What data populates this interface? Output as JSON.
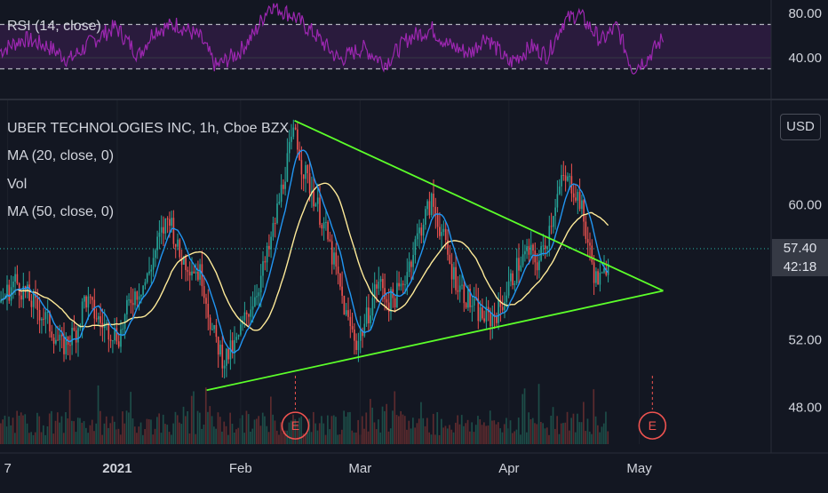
{
  "header": {
    "symbol_title": "UBER TECHNOLOGIES INC, 1h, Cboe BZX",
    "rsi_label": "RSI (14, close)",
    "indicators": [
      "MA (20, close, 0)",
      "Vol",
      "MA (50, close, 0)"
    ],
    "currency_button": "USD"
  },
  "last_price": {
    "value": "57.40",
    "countdown": "42:18",
    "numeric": 57.4
  },
  "colors": {
    "background": "#131722",
    "candle_up": "#26a69a",
    "candle_down": "#ef5350",
    "ma20": "#2196f3",
    "ma50": "#ffeb99",
    "rsi_line": "#9c27b0",
    "rsi_band": "#2a1b3d",
    "trendline": "#5cff2a",
    "earnings_marker": "#ef5350",
    "axis_text": "#d1d4dc",
    "grid": "#363a45"
  },
  "chart_data": [
    {
      "type": "line",
      "name": "RSI (14, close)",
      "ylim": [
        12,
        92
      ],
      "y_ticks": [
        "80.00",
        "40.00"
      ],
      "y_tick_values": [
        80,
        40
      ],
      "bands": [
        30,
        70
      ],
      "x": [
        0,
        0.03,
        0.06,
        0.09,
        0.12,
        0.15,
        0.18,
        0.2,
        0.23,
        0.26,
        0.28,
        0.31,
        0.33,
        0.35,
        0.38,
        0.41,
        0.44,
        0.47,
        0.5,
        0.53,
        0.56,
        0.58,
        0.61,
        0.63,
        0.66,
        0.69,
        0.71,
        0.73,
        0.75,
        0.78,
        0.8,
        0.82,
        0.84,
        0.86
      ],
      "values": [
        46,
        57,
        51,
        38,
        55,
        68,
        42,
        65,
        70,
        58,
        32,
        45,
        62,
        88,
        78,
        60,
        38,
        49,
        35,
        58,
        66,
        52,
        44,
        60,
        35,
        50,
        42,
        72,
        80,
        55,
        68,
        30,
        40,
        58
      ]
    },
    {
      "type": "candlestick",
      "name": "UBER TECHNOLOGIES INC, 1h, Cboe BZX",
      "ylim": [
        45.8,
        66.2
      ],
      "y_ticks": [
        "60.00",
        "52.00",
        "48.00"
      ],
      "y_tick_values": [
        60,
        52,
        48
      ],
      "x_ticks": [
        "7",
        "2021",
        "Feb",
        "Mar",
        "Apr",
        "May"
      ],
      "x_tick_positions": [
        0.01,
        0.152,
        0.312,
        0.467,
        0.66,
        0.829
      ],
      "price_path": [
        [
          0,
          54.2
        ],
        [
          0.02,
          55.5
        ],
        [
          0.04,
          54.3
        ],
        [
          0.06,
          53.2
        ],
        [
          0.08,
          51.5
        ],
        [
          0.1,
          52.6
        ],
        [
          0.11,
          54.5
        ],
        [
          0.13,
          53.0
        ],
        [
          0.155,
          52.2
        ],
        [
          0.17,
          54.5
        ],
        [
          0.19,
          55.5
        ],
        [
          0.205,
          57.8
        ],
        [
          0.22,
          59.4
        ],
        [
          0.232,
          57.0
        ],
        [
          0.25,
          56.3
        ],
        [
          0.262,
          55.8
        ],
        [
          0.275,
          52.5
        ],
        [
          0.29,
          50.8
        ],
        [
          0.305,
          51.6
        ],
        [
          0.32,
          53.5
        ],
        [
          0.335,
          55.2
        ],
        [
          0.35,
          57.5
        ],
        [
          0.36,
          59.8
        ],
        [
          0.372,
          62.5
        ],
        [
          0.383,
          64.5
        ],
        [
          0.392,
          62.2
        ],
        [
          0.405,
          60.8
        ],
        [
          0.42,
          58.8
        ],
        [
          0.435,
          56.2
        ],
        [
          0.45,
          53.2
        ],
        [
          0.463,
          51.8
        ],
        [
          0.475,
          53.2
        ],
        [
          0.49,
          55.5
        ],
        [
          0.505,
          54.2
        ],
        [
          0.52,
          55.0
        ],
        [
          0.535,
          57.2
        ],
        [
          0.548,
          59.0
        ],
        [
          0.56,
          60.2
        ],
        [
          0.572,
          58.5
        ],
        [
          0.585,
          56.2
        ],
        [
          0.598,
          55.0
        ],
        [
          0.61,
          54.2
        ],
        [
          0.622,
          53.5
        ],
        [
          0.635,
          53.2
        ],
        [
          0.648,
          53.8
        ],
        [
          0.66,
          55.2
        ],
        [
          0.672,
          56.5
        ],
        [
          0.685,
          57.2
        ],
        [
          0.698,
          56.5
        ],
        [
          0.71,
          58.2
        ],
        [
          0.72,
          60.2
        ],
        [
          0.73,
          61.5
        ],
        [
          0.742,
          61.2
        ],
        [
          0.752,
          60.2
        ],
        [
          0.762,
          57.8
        ],
        [
          0.772,
          55.6
        ],
        [
          0.782,
          55.5
        ],
        [
          0.79,
          57.4
        ]
      ],
      "trendlines": [
        {
          "from": [
            0.382,
            65.0
          ],
          "to": [
            0.86,
            54.9
          ]
        },
        {
          "from": [
            0.268,
            49.0
          ],
          "to": [
            0.86,
            54.9
          ]
        }
      ],
      "earnings_markers": [
        {
          "label": "E",
          "x": 0.383,
          "y": 46.9
        },
        {
          "label": "E",
          "x": 0.846,
          "y": 46.9
        }
      ]
    }
  ]
}
